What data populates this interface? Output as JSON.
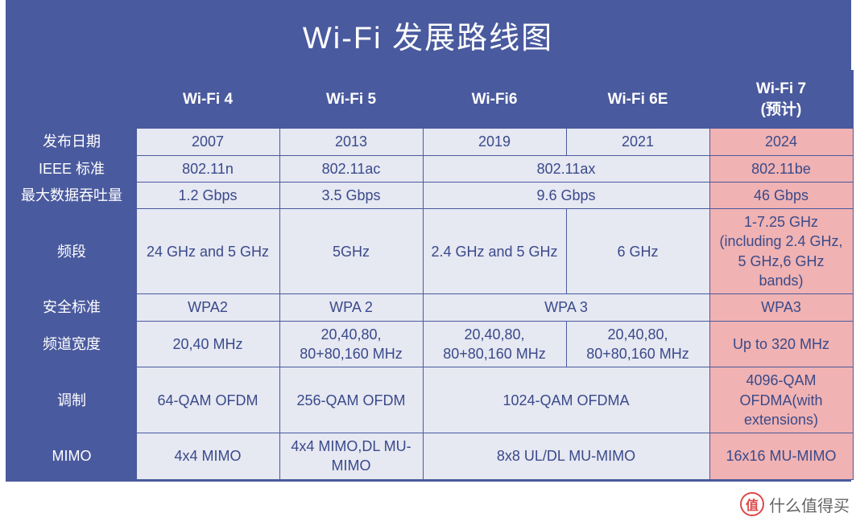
{
  "title": "Wi-Fi 发展路线图",
  "style": {
    "header_bg": "#4a5a9e",
    "header_fg": "#ffffff",
    "row_header_bg": "#4a5a9e",
    "row_header_fg": "#ffffff",
    "cell_bg_normal": "#e6e8f2",
    "cell_bg_highlight": "#f0b2b2",
    "cell_fg": "#3a4a8a",
    "border_color": "#4a5a9e",
    "title_fontsize": "38px",
    "header_fontsize": "19px",
    "rowlabel_fontsize": "18px",
    "cell_fontsize": "18px",
    "col_widths": [
      "160px",
      "178px",
      "178px",
      "178px",
      "178px",
      "178px"
    ]
  },
  "columns": [
    "",
    "Wi-Fi 4",
    "Wi-Fi 5",
    "Wi-Fi6",
    "Wi-Fi 6E",
    "Wi-Fi 7\n(预计)"
  ],
  "rows": [
    {
      "label": "发布日期",
      "cells": [
        {
          "text": "2007",
          "span": 1,
          "hl": false
        },
        {
          "text": "2013",
          "span": 1,
          "hl": false
        },
        {
          "text": "2019",
          "span": 1,
          "hl": false
        },
        {
          "text": "2021",
          "span": 1,
          "hl": false
        },
        {
          "text": "2024",
          "span": 1,
          "hl": true
        }
      ]
    },
    {
      "label": "IEEE 标准",
      "cells": [
        {
          "text": "802.11n",
          "span": 1,
          "hl": false
        },
        {
          "text": "802.11ac",
          "span": 1,
          "hl": false
        },
        {
          "text": "802.11ax",
          "span": 2,
          "hl": false
        },
        {
          "text": "802.11be",
          "span": 1,
          "hl": true
        }
      ]
    },
    {
      "label": "最大数据吞吐量",
      "cells": [
        {
          "text": "1.2 Gbps",
          "span": 1,
          "hl": false
        },
        {
          "text": "3.5 Gbps",
          "span": 1,
          "hl": false
        },
        {
          "text": "9.6 Gbps",
          "span": 2,
          "hl": false
        },
        {
          "text": "46 Gbps",
          "span": 1,
          "hl": true
        }
      ]
    },
    {
      "label": "频段",
      "cells": [
        {
          "text": "24 GHz and 5 GHz",
          "span": 1,
          "hl": false
        },
        {
          "text": "5GHz",
          "span": 1,
          "hl": false
        },
        {
          "text": "2.4 GHz and 5 GHz",
          "span": 1,
          "hl": false
        },
        {
          "text": "6 GHz",
          "span": 1,
          "hl": false
        },
        {
          "text": "1-7.25 GHz (including 2.4 GHz, 5 GHz,6 GHz bands)",
          "span": 1,
          "hl": true
        }
      ]
    },
    {
      "label": "安全标准",
      "cells": [
        {
          "text": "WPA2",
          "span": 1,
          "hl": false
        },
        {
          "text": "WPA 2",
          "span": 1,
          "hl": false
        },
        {
          "text": "WPA 3",
          "span": 2,
          "hl": false
        },
        {
          "text": "WPA3",
          "span": 1,
          "hl": true
        }
      ]
    },
    {
      "label": "频道宽度",
      "cells": [
        {
          "text": "20,40 MHz",
          "span": 1,
          "hl": false
        },
        {
          "text": "20,40,80, 80+80,160 MHz",
          "span": 1,
          "hl": false
        },
        {
          "text": "20,40,80, 80+80,160 MHz",
          "span": 1,
          "hl": false
        },
        {
          "text": "20,40,80, 80+80,160 MHz",
          "span": 1,
          "hl": false
        },
        {
          "text": "Up to 320 MHz",
          "span": 1,
          "hl": true
        }
      ]
    },
    {
      "label": "调制",
      "cells": [
        {
          "text": "64-QAM OFDM",
          "span": 1,
          "hl": false
        },
        {
          "text": "256-QAM OFDM",
          "span": 1,
          "hl": false
        },
        {
          "text": "1024-QAM OFDMA",
          "span": 2,
          "hl": false
        },
        {
          "text": "4096-QAM OFDMA(with extensions)",
          "span": 1,
          "hl": true
        }
      ]
    },
    {
      "label": "MIMO",
      "cells": [
        {
          "text": "4x4 MIMO",
          "span": 1,
          "hl": false
        },
        {
          "text": "4x4 MIMO,DL MU-MIMO",
          "span": 1,
          "hl": false
        },
        {
          "text": "8x8 UL/DL MU-MIMO",
          "span": 2,
          "hl": false
        },
        {
          "text": "16x16 MU-MIMO",
          "span": 1,
          "hl": true
        }
      ]
    }
  ],
  "watermark": {
    "badge": "值",
    "text": "什么值得买"
  }
}
